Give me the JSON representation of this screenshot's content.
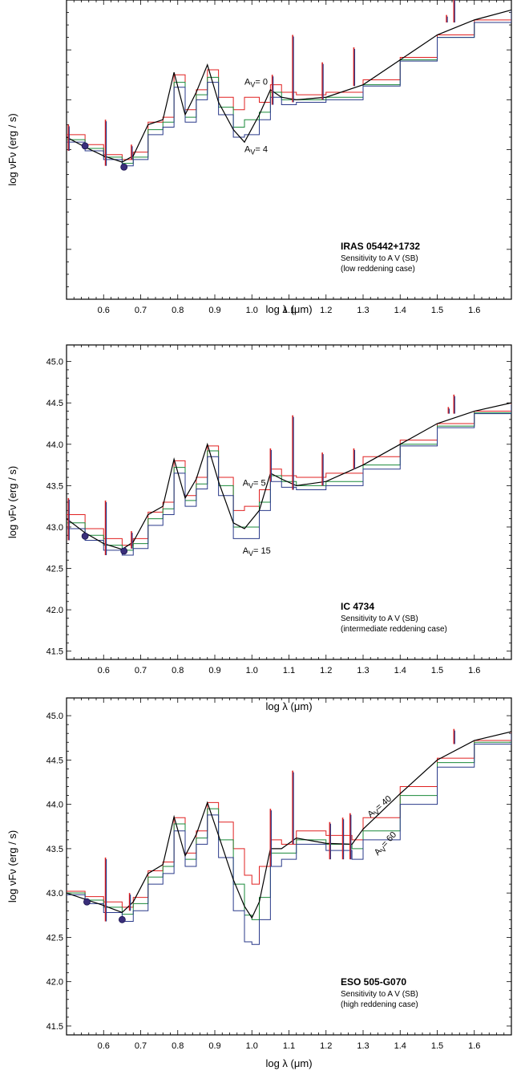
{
  "chart_data": [
    {
      "type": "line",
      "xlabel": "log λ  (μm)",
      "ylabel": "log νFν (erg / s)",
      "xlim": [
        0.5,
        1.7
      ],
      "ylim": [
        0,
        12
      ],
      "xticks": [
        "0.6",
        "0.7",
        "0.8",
        "0.9",
        "1.0",
        "1.1",
        "1.2",
        "1.3",
        "1.4",
        "1.5",
        "1.6"
      ],
      "yticks": [],
      "show_y_tick_labels": false,
      "annotation": {
        "title": "IRAS 05442+1732",
        "line1": "Sensitivity to A V (SB)",
        "line2": "(low reddening case)"
      },
      "curve_labels": [
        {
          "text": "A V = 0",
          "x": 0.98,
          "y": 8.6
        },
        {
          "text": "A V = 4",
          "x": 0.98,
          "y": 5.9
        }
      ],
      "photometry": [
        {
          "x": 0.55,
          "y": 6.15
        },
        {
          "x": 0.655,
          "y": 5.3
        }
      ],
      "series": [
        {
          "color": "#e02020",
          "x": [
            0.5,
            0.55,
            0.6,
            0.65,
            0.68,
            0.72,
            0.76,
            0.79,
            0.82,
            0.85,
            0.88,
            0.91,
            0.95,
            0.98,
            1.02,
            1.05,
            1.08,
            1.12,
            1.2,
            1.3,
            1.4,
            1.5,
            1.6,
            1.7
          ],
          "y": [
            6.6,
            6.2,
            5.8,
            5.6,
            5.9,
            7.1,
            7.3,
            9.0,
            7.6,
            8.4,
            9.2,
            8.1,
            7.6,
            8.1,
            7.9,
            8.6,
            8.3,
            8.2,
            8.3,
            8.8,
            9.7,
            10.6,
            11.2,
            11.6
          ]
        },
        {
          "color": "#1a8a3a",
          "x": [
            0.5,
            0.55,
            0.6,
            0.65,
            0.68,
            0.72,
            0.76,
            0.79,
            0.82,
            0.85,
            0.88,
            0.91,
            0.95,
            0.98,
            1.02,
            1.05,
            1.08,
            1.12,
            1.2,
            1.3,
            1.4,
            1.5,
            1.6,
            1.7
          ],
          "y": [
            6.4,
            6.05,
            5.7,
            5.45,
            5.7,
            6.8,
            7.1,
            8.7,
            7.3,
            8.2,
            8.9,
            7.7,
            6.9,
            7.2,
            7.5,
            8.3,
            8.0,
            8.0,
            8.1,
            8.6,
            9.6,
            10.5,
            11.1,
            11.6
          ]
        },
        {
          "color": "#2a3a8a",
          "x": [
            0.5,
            0.55,
            0.6,
            0.65,
            0.68,
            0.72,
            0.76,
            0.79,
            0.82,
            0.85,
            0.88,
            0.91,
            0.95,
            0.98,
            1.02,
            1.05,
            1.08,
            1.12,
            1.2,
            1.3,
            1.4,
            1.5,
            1.6,
            1.7
          ],
          "y": [
            6.3,
            5.95,
            5.6,
            5.35,
            5.6,
            6.6,
            6.9,
            8.5,
            7.1,
            8.0,
            8.7,
            7.4,
            6.5,
            6.6,
            7.2,
            8.1,
            7.8,
            7.9,
            8.0,
            8.55,
            9.55,
            10.5,
            11.1,
            11.6
          ]
        },
        {
          "color": "#000000",
          "x": [
            0.5,
            0.55,
            0.6,
            0.65,
            0.68,
            0.72,
            0.76,
            0.79,
            0.82,
            0.85,
            0.88,
            0.91,
            0.95,
            0.98,
            1.02,
            1.05,
            1.08,
            1.12,
            1.2,
            1.3,
            1.4,
            1.5,
            1.6,
            1.7
          ],
          "y": [
            6.5,
            6.1,
            5.75,
            5.5,
            5.75,
            7.0,
            7.2,
            9.1,
            7.4,
            8.3,
            9.4,
            7.9,
            6.8,
            6.3,
            7.4,
            8.4,
            8.1,
            8.0,
            8.1,
            8.6,
            9.6,
            10.6,
            11.2,
            11.6
          ]
        }
      ],
      "spikes": [
        {
          "x": 0.505,
          "y": 7.0
        },
        {
          "x": 0.605,
          "y": 7.2
        },
        {
          "x": 0.675,
          "y": 6.2
        },
        {
          "x": 1.055,
          "y": 9.0
        },
        {
          "x": 1.11,
          "y": 10.6
        },
        {
          "x": 1.19,
          "y": 9.5
        },
        {
          "x": 1.275,
          "y": 10.1
        },
        {
          "x": 1.525,
          "y": 11.4
        },
        {
          "x": 1.545,
          "y": 12.3
        }
      ]
    },
    {
      "type": "line",
      "xlabel": "log λ  (μm)",
      "ylabel": "log νFν (erg / s)",
      "xlim": [
        0.5,
        1.7
      ],
      "ylim": [
        41.4,
        45.2
      ],
      "xticks": [
        "0.6",
        "0.7",
        "0.8",
        "0.9",
        "1.0",
        "1.1",
        "1.2",
        "1.3",
        "1.4",
        "1.5",
        "1.6"
      ],
      "yticks": [
        "41.5",
        "42.0",
        "42.5",
        "43.0",
        "43.5",
        "44.0",
        "44.5",
        "45.0"
      ],
      "show_y_tick_labels": true,
      "annotation": {
        "title": "IC 4734",
        "line1": "Sensitivity to A V (SB)",
        "line2": "(intermediate reddening case)"
      },
      "curve_labels": [
        {
          "text": "A V = 5",
          "x": 0.975,
          "y": 43.5
        },
        {
          "text": "A V = 15",
          "x": 0.975,
          "y": 42.68
        }
      ],
      "photometry": [
        {
          "x": 0.55,
          "y": 42.89
        },
        {
          "x": 0.655,
          "y": 42.71
        }
      ],
      "series": [
        {
          "color": "#e02020",
          "x": [
            0.5,
            0.55,
            0.6,
            0.65,
            0.68,
            0.72,
            0.76,
            0.79,
            0.82,
            0.85,
            0.88,
            0.91,
            0.95,
            0.98,
            1.02,
            1.05,
            1.08,
            1.12,
            1.2,
            1.3,
            1.4,
            1.5,
            1.6,
            1.7
          ],
          "y": [
            43.15,
            42.98,
            42.86,
            42.78,
            42.86,
            43.18,
            43.3,
            43.8,
            43.38,
            43.6,
            43.98,
            43.6,
            43.2,
            43.25,
            43.45,
            43.7,
            43.62,
            43.6,
            43.65,
            43.85,
            44.05,
            44.25,
            44.4,
            44.5
          ]
        },
        {
          "color": "#1a8a3a",
          "x": [
            0.5,
            0.55,
            0.6,
            0.65,
            0.68,
            0.72,
            0.76,
            0.79,
            0.82,
            0.85,
            0.88,
            0.91,
            0.95,
            0.98,
            1.02,
            1.05,
            1.08,
            1.12,
            1.2,
            1.3,
            1.4,
            1.5,
            1.6,
            1.7
          ],
          "y": [
            43.05,
            42.9,
            42.78,
            42.72,
            42.8,
            43.1,
            43.22,
            43.72,
            43.32,
            43.52,
            43.92,
            43.5,
            43.0,
            43.0,
            43.3,
            43.62,
            43.55,
            43.5,
            43.55,
            43.75,
            44.0,
            44.22,
            44.38,
            44.48
          ]
        },
        {
          "color": "#2a3a8a",
          "x": [
            0.5,
            0.55,
            0.6,
            0.65,
            0.68,
            0.72,
            0.76,
            0.79,
            0.82,
            0.85,
            0.88,
            0.91,
            0.95,
            0.98,
            1.02,
            1.05,
            1.08,
            1.12,
            1.2,
            1.3,
            1.4,
            1.5,
            1.6,
            1.7
          ],
          "y": [
            42.98,
            42.84,
            42.72,
            42.66,
            42.74,
            43.02,
            43.15,
            43.65,
            43.25,
            43.46,
            43.85,
            43.38,
            42.86,
            42.86,
            43.2,
            43.55,
            43.48,
            43.45,
            43.5,
            43.7,
            43.98,
            44.2,
            44.37,
            44.48
          ]
        },
        {
          "color": "#000000",
          "x": [
            0.5,
            0.55,
            0.6,
            0.65,
            0.68,
            0.72,
            0.76,
            0.79,
            0.82,
            0.85,
            0.88,
            0.91,
            0.95,
            0.98,
            1.02,
            1.05,
            1.08,
            1.12,
            1.2,
            1.3,
            1.4,
            1.5,
            1.6,
            1.7
          ],
          "y": [
            43.1,
            42.93,
            42.8,
            42.73,
            42.82,
            43.15,
            43.25,
            43.82,
            43.35,
            43.58,
            44.0,
            43.55,
            43.05,
            42.98,
            43.2,
            43.65,
            43.58,
            43.5,
            43.55,
            43.75,
            44.0,
            44.25,
            44.4,
            44.5
          ]
        }
      ],
      "spikes": [
        {
          "x": 0.505,
          "y": 43.35
        },
        {
          "x": 0.605,
          "y": 43.32
        },
        {
          "x": 0.675,
          "y": 42.95
        },
        {
          "x": 1.05,
          "y": 43.95
        },
        {
          "x": 1.11,
          "y": 44.35
        },
        {
          "x": 1.19,
          "y": 43.9
        },
        {
          "x": 1.275,
          "y": 43.95
        },
        {
          "x": 1.53,
          "y": 44.45
        },
        {
          "x": 1.545,
          "y": 44.6
        }
      ]
    },
    {
      "type": "line",
      "xlabel": "log λ  (μm)",
      "ylabel": "log νFν (erg / s)",
      "xlim": [
        0.5,
        1.7
      ],
      "ylim": [
        41.4,
        45.2
      ],
      "xticks": [
        "0.6",
        "0.7",
        "0.8",
        "0.9",
        "1.0",
        "1.1",
        "1.2",
        "1.3",
        "1.4",
        "1.5",
        "1.6"
      ],
      "yticks": [
        "41.5",
        "42.0",
        "42.5",
        "43.0",
        "43.5",
        "44.0",
        "44.5",
        "45.0"
      ],
      "show_y_tick_labels": true,
      "annotation": {
        "title": "ESO 505-G070",
        "line1": "Sensitivity to A V (SB)",
        "line2": "(high reddening case)"
      },
      "curve_labels": [
        {
          "text": "A V = 40",
          "x": 1.32,
          "y": 43.85,
          "rotate": -40
        },
        {
          "text": "A V = 60",
          "x": 1.34,
          "y": 43.42,
          "rotate": -48
        }
      ],
      "photometry": [
        {
          "x": 0.555,
          "y": 42.9
        },
        {
          "x": 0.65,
          "y": 42.7
        }
      ],
      "series": [
        {
          "color": "#e02020",
          "x": [
            0.5,
            0.55,
            0.6,
            0.65,
            0.68,
            0.72,
            0.76,
            0.79,
            0.82,
            0.85,
            0.88,
            0.91,
            0.95,
            0.98,
            1.0,
            1.02,
            1.05,
            1.08,
            1.12,
            1.2,
            1.27,
            1.3,
            1.4,
            1.5,
            1.6,
            1.7
          ],
          "y": [
            43.02,
            42.96,
            42.9,
            42.84,
            42.95,
            43.25,
            43.35,
            43.85,
            43.45,
            43.7,
            44.02,
            43.8,
            43.5,
            43.2,
            43.1,
            43.3,
            43.6,
            43.55,
            43.7,
            43.65,
            43.6,
            43.85,
            44.2,
            44.52,
            44.72,
            44.82
          ]
        },
        {
          "color": "#1a8a3a",
          "x": [
            0.5,
            0.55,
            0.6,
            0.65,
            0.68,
            0.72,
            0.76,
            0.79,
            0.82,
            0.85,
            0.88,
            0.91,
            0.95,
            0.98,
            1.0,
            1.02,
            1.05,
            1.08,
            1.12,
            1.2,
            1.27,
            1.3,
            1.4,
            1.5,
            1.6,
            1.7
          ],
          "y": [
            43.0,
            42.92,
            42.84,
            42.76,
            42.88,
            43.18,
            43.3,
            43.78,
            43.38,
            43.62,
            43.95,
            43.6,
            43.1,
            42.75,
            42.7,
            42.95,
            43.45,
            43.45,
            43.6,
            43.55,
            43.5,
            43.7,
            44.1,
            44.47,
            44.7,
            44.8
          ]
        },
        {
          "color": "#2a3a8a",
          "x": [
            0.5,
            0.55,
            0.6,
            0.65,
            0.68,
            0.72,
            0.76,
            0.79,
            0.82,
            0.85,
            0.88,
            0.91,
            0.95,
            0.98,
            1.0,
            1.02,
            1.05,
            1.08,
            1.12,
            1.2,
            1.27,
            1.3,
            1.4,
            1.5,
            1.6,
            1.7
          ],
          "y": [
            42.98,
            42.88,
            42.78,
            42.68,
            42.8,
            43.1,
            43.22,
            43.7,
            43.3,
            43.55,
            43.88,
            43.4,
            42.8,
            42.45,
            42.42,
            42.7,
            43.3,
            43.38,
            43.55,
            43.48,
            43.38,
            43.6,
            44.0,
            44.42,
            44.68,
            44.8
          ]
        },
        {
          "color": "#000000",
          "x": [
            0.5,
            0.55,
            0.6,
            0.65,
            0.68,
            0.72,
            0.76,
            0.79,
            0.82,
            0.85,
            0.88,
            0.91,
            0.95,
            0.98,
            1.0,
            1.02,
            1.05,
            1.08,
            1.12,
            1.2,
            1.27,
            1.3,
            1.4,
            1.5,
            1.6,
            1.7
          ],
          "y": [
            43.0,
            42.93,
            42.86,
            42.78,
            42.9,
            43.22,
            43.32,
            43.86,
            43.42,
            43.66,
            44.02,
            43.65,
            43.15,
            42.85,
            42.72,
            42.9,
            43.5,
            43.5,
            43.62,
            43.56,
            43.55,
            43.72,
            44.12,
            44.5,
            44.72,
            44.82
          ]
        }
      ],
      "spikes": [
        {
          "x": 0.605,
          "y": 43.4
        },
        {
          "x": 0.67,
          "y": 43.0
        },
        {
          "x": 1.05,
          "y": 43.95
        },
        {
          "x": 1.11,
          "y": 44.38
        },
        {
          "x": 1.21,
          "y": 43.8
        },
        {
          "x": 1.245,
          "y": 43.85
        },
        {
          "x": 1.265,
          "y": 43.9
        },
        {
          "x": 1.545,
          "y": 44.85
        }
      ]
    }
  ]
}
